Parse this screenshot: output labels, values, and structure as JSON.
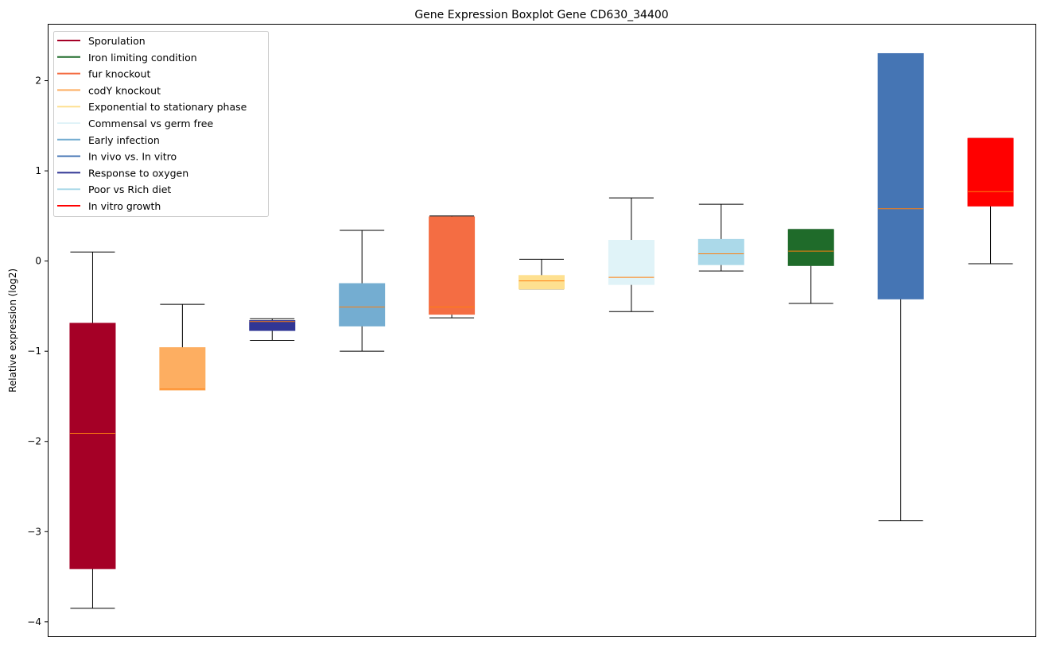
{
  "chart_data": {
    "type": "boxplot",
    "title": "Gene Expression Boxplot Gene CD630_34400",
    "xlabel": "",
    "ylabel": "Relative expression (log2)",
    "ylim": [
      -4.16,
      2.63
    ],
    "yticks": [
      2,
      1,
      0,
      -1,
      -2,
      -3,
      -4
    ],
    "ytick_labels": [
      "2",
      "1",
      "0",
      "−1",
      "−2",
      "−3",
      "−4"
    ],
    "grid": false,
    "legend_placement": "top-left",
    "median_color": "#ff7f0e",
    "boxes": [
      {
        "name": "Sporulation",
        "color": "#a50026",
        "whisker_low": -3.85,
        "q1": -3.41,
        "median": -1.91,
        "q3": -0.69,
        "whisker_high": 0.1
      },
      {
        "name": "codY knockout",
        "color": "#fdae61",
        "whisker_low": -1.43,
        "q1": -1.43,
        "median": -1.42,
        "q3": -0.96,
        "whisker_high": -0.48
      },
      {
        "name": "Response to oxygen",
        "color": "#313695",
        "whisker_low": -0.88,
        "q1": -0.77,
        "median": -0.67,
        "q3": -0.66,
        "whisker_high": -0.64
      },
      {
        "name": "Early infection",
        "color": "#74add1",
        "whisker_low": -1.0,
        "q1": -0.72,
        "median": -0.51,
        "q3": -0.25,
        "whisker_high": 0.34
      },
      {
        "name": "fur knockout",
        "color": "#f46d43",
        "whisker_low": -0.63,
        "q1": -0.59,
        "median": -0.51,
        "q3": 0.49,
        "whisker_high": 0.5
      },
      {
        "name": "Exponential to stationary phase",
        "color": "#fee090",
        "whisker_low": -0.31,
        "q1": -0.31,
        "median": -0.22,
        "q3": -0.16,
        "whisker_high": 0.02
      },
      {
        "name": "Commensal vs germ free",
        "color": "#e0f3f8",
        "whisker_low": -0.56,
        "q1": -0.26,
        "median": -0.18,
        "q3": 0.23,
        "whisker_high": 0.7
      },
      {
        "name": "Poor vs Rich diet",
        "color": "#abd9e9",
        "whisker_low": -0.11,
        "q1": -0.04,
        "median": 0.08,
        "q3": 0.24,
        "whisker_high": 0.63
      },
      {
        "name": "Iron limiting condition",
        "color": "#1f6b2a",
        "whisker_low": -0.47,
        "q1": -0.05,
        "median": 0.11,
        "q3": 0.35,
        "whisker_high": 0.35
      },
      {
        "name": "In vivo vs. In vitro",
        "color": "#4575b4",
        "whisker_low": -2.88,
        "q1": -0.42,
        "median": 0.58,
        "q3": 2.3,
        "whisker_high": 2.3
      },
      {
        "name": "In vitro growth",
        "color": "#ff0000",
        "whisker_low": -0.03,
        "q1": 0.61,
        "median": 0.77,
        "q3": 1.36,
        "whisker_high": 1.36
      }
    ],
    "legend": [
      {
        "label": "Sporulation",
        "color": "#a50026"
      },
      {
        "label": "Iron limiting condition",
        "color": "#1f6b2a"
      },
      {
        "label": "fur knockout",
        "color": "#f46d43"
      },
      {
        "label": "codY knockout",
        "color": "#fdae61"
      },
      {
        "label": "Exponential to stationary phase",
        "color": "#fee090"
      },
      {
        "label": "Commensal vs germ free",
        "color": "#e0f3f8"
      },
      {
        "label": "Early infection",
        "color": "#74add1"
      },
      {
        "label": "In vivo vs. In vitro",
        "color": "#4575b4"
      },
      {
        "label": "Response to oxygen",
        "color": "#313695"
      },
      {
        "label": "Poor vs Rich diet",
        "color": "#abd9e9"
      },
      {
        "label": "In vitro growth",
        "color": "#ff0000"
      }
    ]
  }
}
